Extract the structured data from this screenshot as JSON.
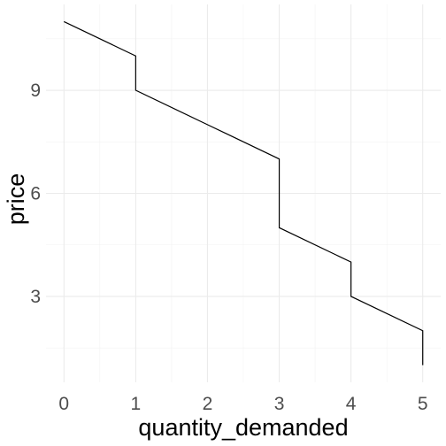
{
  "chart_data": {
    "type": "line",
    "title": "",
    "xlabel": "quantity_demanded",
    "ylabel": "price",
    "xlim": [
      0,
      5
    ],
    "ylim": [
      1,
      11
    ],
    "x_ticks": [
      0,
      1,
      2,
      3,
      4,
      5
    ],
    "x_tick_labels": [
      "0",
      "1",
      "2",
      "3",
      "4",
      "5"
    ],
    "y_ticks": [
      3,
      6,
      9
    ],
    "y_tick_labels": [
      "3",
      "6",
      "9"
    ],
    "grid": true,
    "legend": "none",
    "line_color": "#000000",
    "series": [
      {
        "x": [
          0,
          1,
          1,
          2,
          3,
          3,
          4,
          4,
          5,
          5
        ],
        "y": [
          11,
          10,
          9,
          8,
          7,
          5,
          4,
          3,
          2,
          1
        ]
      }
    ]
  }
}
